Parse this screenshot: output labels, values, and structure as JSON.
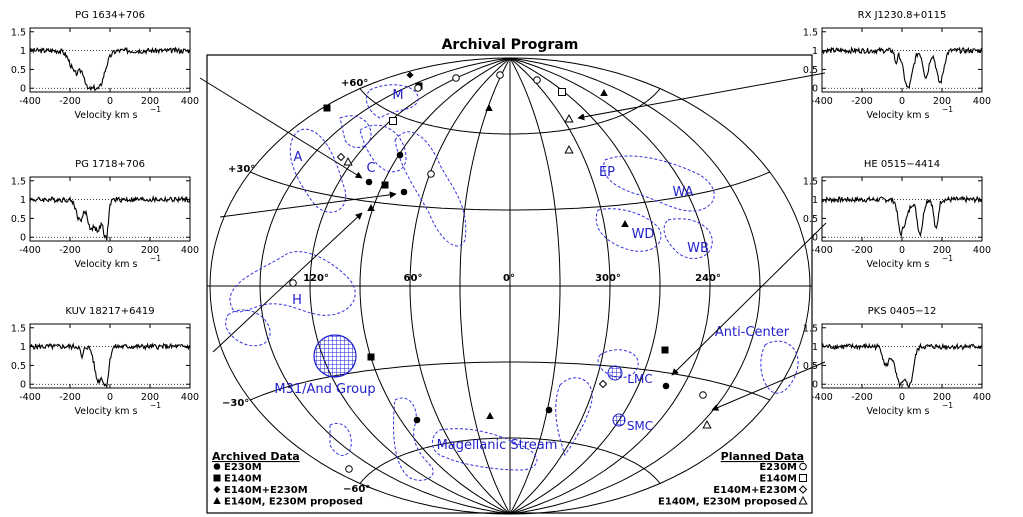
{
  "figure": {
    "title": "Archival Program",
    "lat_labels": [
      "+60°",
      "+30°",
      "−30°",
      "−60°"
    ],
    "lon_labels": [
      "120°",
      "60°",
      "0°",
      "300°",
      "240°"
    ],
    "regions": [
      "M",
      "A",
      "C",
      "EP",
      "WA",
      "WD",
      "WB",
      "H",
      "Anti-Center",
      "M31/And Group",
      "LMC",
      "SMC",
      "Magellanic Stream"
    ]
  },
  "legend_archived": {
    "title": "Archived Data",
    "items": [
      "E230M",
      "E140M",
      "E140M+E230M",
      "E140M, E230M proposed"
    ]
  },
  "legend_planned": {
    "title": "Planned Data",
    "items": [
      "E230M",
      "E140M",
      "E140M+E230M",
      "E140M, E230M proposed"
    ]
  },
  "spectra": [
    {
      "title": "PG 1634+706"
    },
    {
      "title": "PG 1718+706"
    },
    {
      "title": "KUV 18217+6419"
    },
    {
      "title": "RX J1230.8+0115"
    },
    {
      "title": "HE 0515−4414"
    },
    {
      "title": "PKS 0405−12"
    }
  ],
  "axis": {
    "xlabel": "Velocity  km  s",
    "xlabel_exp": "−1",
    "xticks": [
      "-400",
      "-200",
      "0",
      "200",
      "400"
    ],
    "yticks": [
      "1.5",
      "1",
      "0.5",
      "0"
    ]
  }
}
